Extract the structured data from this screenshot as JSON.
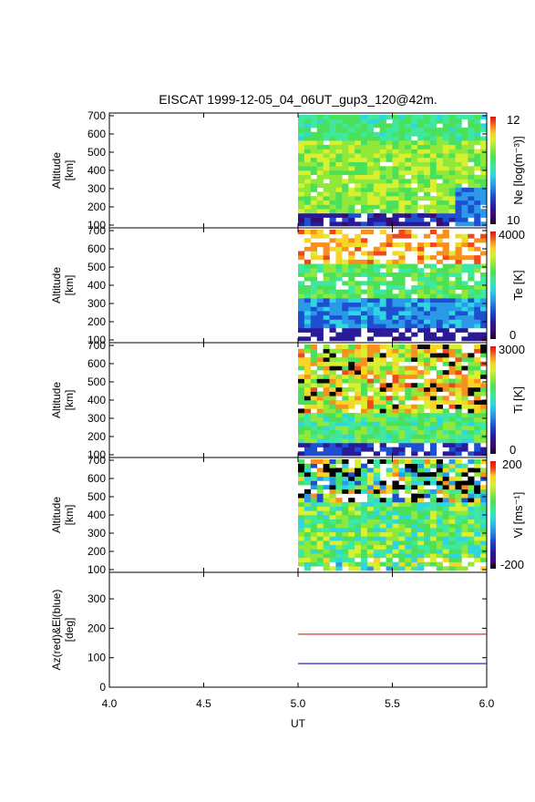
{
  "chart_data": {
    "type": "heatmap",
    "title": "EISCAT 1999-12-05_04_06UT_gup3_120@42m.",
    "xlabel": "UT",
    "xlim": [
      4.0,
      6.0
    ],
    "x_ticks": [
      "4.0",
      "4.5",
      "5.0",
      "5.5",
      "6.0"
    ],
    "data_time_range": [
      5.0,
      6.0
    ],
    "panels": [
      {
        "id": "ne",
        "ylabel_line1": "Altitude",
        "ylabel_line2": "[km]",
        "ylim": [
          85,
          715
        ],
        "y_ticks": [
          "100",
          "200",
          "300",
          "400",
          "500",
          "600",
          "700"
        ],
        "colorbar_label": "Ne [log(m⁻³)]",
        "colorbar_top": "12",
        "colorbar_bottom": "10",
        "range": [
          10,
          12
        ]
      },
      {
        "id": "te",
        "ylabel_line1": "Altitude",
        "ylabel_line2": "[km]",
        "ylim": [
          85,
          715
        ],
        "y_ticks": [
          "100",
          "200",
          "300",
          "400",
          "500",
          "600",
          "700"
        ],
        "colorbar_label": "Te [K]",
        "colorbar_top": "4000",
        "colorbar_bottom": "0",
        "range": [
          0,
          4000
        ]
      },
      {
        "id": "ti",
        "ylabel_line1": "Altitude",
        "ylabel_line2": "[km]",
        "ylim": [
          85,
          715
        ],
        "y_ticks": [
          "100",
          "200",
          "300",
          "400",
          "500",
          "600",
          "700"
        ],
        "colorbar_label": "Ti [K]",
        "colorbar_top": "3000",
        "colorbar_bottom": "0",
        "range": [
          0,
          3000
        ]
      },
      {
        "id": "vi",
        "ylabel_line1": "Altitude",
        "ylabel_line2": "[km]",
        "ylim": [
          85,
          715
        ],
        "y_ticks": [
          "100",
          "200",
          "300",
          "400",
          "500",
          "600",
          "700"
        ],
        "colorbar_label": "Vi [ms⁻¹]",
        "colorbar_top": "200",
        "colorbar_bottom": "-200",
        "range": [
          -200,
          200
        ]
      }
    ],
    "angle_panel": {
      "ylabel_line1": "Az(red)&El(blue)",
      "ylabel_line2": "[deg]",
      "ylim": [
        0,
        390
      ],
      "y_ticks": [
        "0",
        "100",
        "200",
        "300"
      ],
      "series": [
        {
          "color": "#e8341c",
          "x": [
            5.0,
            6.0
          ],
          "y": [
            180,
            180
          ]
        },
        {
          "color": "#2a2ab4",
          "x": [
            5.0,
            6.0
          ],
          "y": [
            80,
            80
          ]
        }
      ]
    },
    "colormap": [
      "#1a0030",
      "#3b0a6e",
      "#2a1a9a",
      "#1e4fd0",
      "#2a9ae8",
      "#2fd6e0",
      "#3ee8a0",
      "#4be05a",
      "#8fe83a",
      "#d8f030",
      "#f8d428",
      "#f89020",
      "#f04818",
      "#e01010"
    ]
  }
}
